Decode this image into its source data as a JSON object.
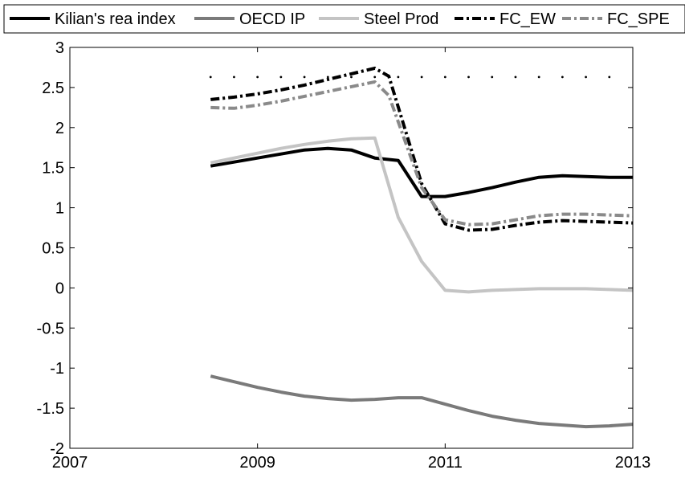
{
  "chart_data": {
    "type": "line",
    "title": "",
    "xlabel": "",
    "ylabel": "",
    "xlim": [
      2007,
      2013
    ],
    "ylim": [
      -2,
      3
    ],
    "xticks": [
      2007,
      2009,
      2011,
      2013
    ],
    "xtick_labels": [
      "2007",
      "2009",
      "2011",
      "2013"
    ],
    "yticks": [
      -2,
      -1.5,
      -1,
      -0.5,
      0,
      0.5,
      1,
      1.5,
      2,
      2.5,
      3
    ],
    "ytick_labels": [
      "-2",
      "-1.5",
      "-1",
      "-0.5",
      "0",
      "0.5",
      "1",
      "1.5",
      "2",
      "2.5",
      "3"
    ],
    "grid": false,
    "legend_position": "top",
    "series": [
      {
        "name": "Kilian's rea index",
        "color": "#000000",
        "dash": "solid",
        "x": [
          2008.5,
          2008.75,
          2009.0,
          2009.25,
          2009.5,
          2009.75,
          2010.0,
          2010.25,
          2010.5,
          2010.75,
          2011.0,
          2011.25,
          2011.5,
          2011.75,
          2012.0,
          2012.25,
          2012.5,
          2012.75,
          2013.0
        ],
        "y": [
          1.52,
          1.57,
          1.62,
          1.67,
          1.72,
          1.74,
          1.72,
          1.62,
          1.59,
          1.14,
          1.14,
          1.19,
          1.25,
          1.32,
          1.38,
          1.4,
          1.39,
          1.38,
          1.38
        ]
      },
      {
        "name": "OECD IP",
        "color": "#7a7a7a",
        "dash": "solid",
        "x": [
          2008.5,
          2008.75,
          2009.0,
          2009.25,
          2009.5,
          2009.75,
          2010.0,
          2010.25,
          2010.5,
          2010.75,
          2011.0,
          2011.25,
          2011.5,
          2011.75,
          2012.0,
          2012.25,
          2012.5,
          2012.75,
          2013.0
        ],
        "y": [
          -1.1,
          -1.17,
          -1.24,
          -1.3,
          -1.35,
          -1.38,
          -1.4,
          -1.39,
          -1.37,
          -1.37,
          -1.45,
          -1.53,
          -1.6,
          -1.65,
          -1.69,
          -1.71,
          -1.73,
          -1.72,
          -1.7
        ]
      },
      {
        "name": "Steel Prod",
        "color": "#c4c4c4",
        "dash": "solid",
        "x": [
          2008.5,
          2008.75,
          2009.0,
          2009.25,
          2009.5,
          2009.75,
          2010.0,
          2010.25,
          2010.5,
          2010.75,
          2011.0,
          2011.25,
          2011.5,
          2011.75,
          2012.0,
          2012.25,
          2012.5,
          2012.75,
          2013.0
        ],
        "y": [
          1.56,
          1.62,
          1.68,
          1.74,
          1.79,
          1.83,
          1.86,
          1.87,
          0.88,
          0.33,
          -0.03,
          -0.05,
          -0.03,
          -0.02,
          -0.01,
          -0.01,
          -0.01,
          -0.02,
          -0.03
        ]
      },
      {
        "name": "FC_EW",
        "color": "#000000",
        "dash": "dashdot",
        "x": [
          2008.5,
          2008.75,
          2009.0,
          2009.25,
          2009.5,
          2009.75,
          2010.0,
          2010.25,
          2010.4,
          2010.75,
          2011.0,
          2011.25,
          2011.5,
          2011.75,
          2012.0,
          2012.25,
          2012.5,
          2012.75,
          2013.0
        ],
        "y": [
          2.35,
          2.38,
          2.42,
          2.47,
          2.53,
          2.6,
          2.67,
          2.74,
          2.64,
          1.3,
          0.8,
          0.72,
          0.73,
          0.78,
          0.82,
          0.84,
          0.83,
          0.82,
          0.81
        ]
      },
      {
        "name": "FC_SPE",
        "color": "#8a8a8a",
        "dash": "dashdot",
        "x": [
          2008.5,
          2008.75,
          2009.0,
          2009.25,
          2009.5,
          2009.75,
          2010.0,
          2010.25,
          2010.4,
          2010.75,
          2011.0,
          2011.25,
          2011.5,
          2011.75,
          2012.0,
          2012.25,
          2012.5,
          2012.75,
          2013.0
        ],
        "y": [
          2.25,
          2.24,
          2.28,
          2.33,
          2.39,
          2.45,
          2.51,
          2.57,
          2.4,
          1.25,
          0.85,
          0.79,
          0.8,
          0.85,
          0.9,
          0.92,
          0.92,
          0.91,
          0.9
        ]
      }
    ],
    "markers": {
      "style": "dotted",
      "color": "#000000",
      "x": [
        2008.5,
        2008.75,
        2009.0,
        2009.25,
        2009.5,
        2009.75,
        2010.0,
        2010.25,
        2010.5,
        2010.75,
        2011.0,
        2011.25,
        2011.5,
        2011.75,
        2012.0,
        2012.25,
        2012.5,
        2012.75
      ],
      "y": [
        2.63,
        2.63,
        2.63,
        2.63,
        2.63,
        2.63,
        2.63,
        2.63,
        2.63,
        2.63,
        2.63,
        2.63,
        2.63,
        2.63,
        2.63,
        2.63,
        2.63,
        2.63
      ]
    }
  }
}
